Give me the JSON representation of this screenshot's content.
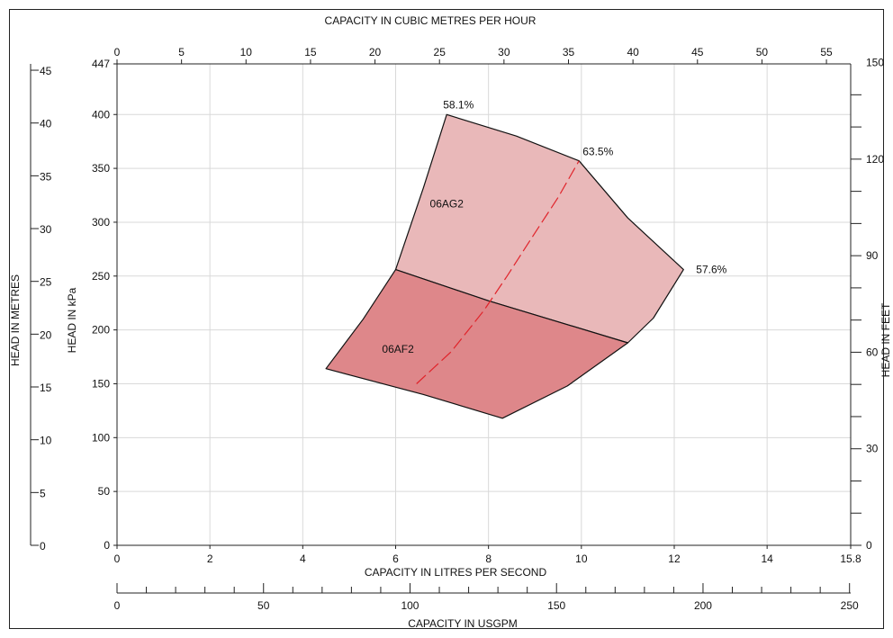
{
  "chart_data": {
    "type": "area",
    "titles": {
      "top": "CAPACITY IN CUBIC METRES PER HOUR",
      "bottom_lps": "CAPACITY IN LITRES PER SECOND",
      "bottom_gpm": "CAPACITY IN USGPM",
      "left_metres": "HEAD IN METRES",
      "left_kpa": "HEAD IN kPa",
      "right_feet": "HEAD IN FEET"
    },
    "axes": {
      "x_lps": {
        "range": [
          0,
          15.8
        ],
        "ticks": [
          "0",
          "2",
          "4",
          "6",
          "8",
          "10",
          "12",
          "14",
          "15.8"
        ],
        "tick_values": [
          0,
          2,
          4,
          6,
          8,
          10,
          12,
          14,
          15.8
        ]
      },
      "x_m3h": {
        "range": [
          0,
          56.88
        ],
        "ticks": [
          "0",
          "5",
          "10",
          "15",
          "20",
          "25",
          "30",
          "35",
          "40",
          "45",
          "50",
          "55"
        ],
        "tick_values": [
          0,
          5,
          10,
          15,
          20,
          25,
          30,
          35,
          40,
          45,
          50,
          55
        ]
      },
      "x_usgpm": {
        "range": [
          0,
          250.4
        ],
        "ticks": [
          "0",
          "50",
          "100",
          "150",
          "200",
          "250"
        ],
        "tick_values": [
          0,
          50,
          100,
          150,
          200,
          250
        ],
        "minor_step": 10
      },
      "y_kpa": {
        "range": [
          0,
          447
        ],
        "ticks": [
          "0",
          "50",
          "100",
          "150",
          "200",
          "250",
          "300",
          "350",
          "400",
          "447"
        ],
        "tick_values": [
          0,
          50,
          100,
          150,
          200,
          250,
          300,
          350,
          400,
          447
        ]
      },
      "y_metres": {
        "range": [
          0,
          45.6
        ],
        "ticks": [
          "0",
          "5",
          "10",
          "15",
          "20",
          "25",
          "30",
          "35",
          "40",
          "45"
        ],
        "tick_values": [
          0,
          5,
          10,
          15,
          20,
          25,
          30,
          35,
          40,
          45
        ]
      },
      "y_feet": {
        "range": [
          0,
          149.6
        ],
        "ticks": [
          "0",
          "30",
          "60",
          "90",
          "120",
          "150"
        ],
        "tick_values": [
          0,
          30,
          60,
          90,
          120,
          150
        ],
        "minor_step": 10
      }
    },
    "grid": true,
    "regions": [
      {
        "name": "06AG2",
        "color": "#e9b8b9",
        "label_at": {
          "lps": 7.1,
          "kpa": 317
        },
        "boundary": [
          {
            "lps": 6.0,
            "kpa": 256
          },
          {
            "lps": 6.6,
            "kpa": 332
          },
          {
            "lps": 7.1,
            "kpa": 400
          },
          {
            "lps": 8.6,
            "kpa": 380
          },
          {
            "lps": 9.95,
            "kpa": 357
          },
          {
            "lps": 11.0,
            "kpa": 304
          },
          {
            "lps": 12.2,
            "kpa": 256
          },
          {
            "lps": 11.55,
            "kpa": 211
          },
          {
            "lps": 11.0,
            "kpa": 188
          },
          {
            "lps": 8.0,
            "kpa": 227
          },
          {
            "lps": 6.0,
            "kpa": 256
          }
        ]
      },
      {
        "name": "06AF2",
        "color": "#de878a",
        "label_at": {
          "lps": 6.05,
          "kpa": 182
        },
        "boundary": [
          {
            "lps": 4.5,
            "kpa": 164
          },
          {
            "lps": 5.3,
            "kpa": 210
          },
          {
            "lps": 6.0,
            "kpa": 256
          },
          {
            "lps": 8.0,
            "kpa": 227
          },
          {
            "lps": 11.0,
            "kpa": 188
          },
          {
            "lps": 9.7,
            "kpa": 148
          },
          {
            "lps": 8.3,
            "kpa": 118
          },
          {
            "lps": 6.6,
            "kpa": 140
          },
          {
            "lps": 4.5,
            "kpa": 164
          }
        ]
      }
    ],
    "efficiency_labels": [
      {
        "text": "58.1%",
        "lps": 7.1,
        "kpa": 400
      },
      {
        "text": "63.5%",
        "lps": 9.95,
        "kpa": 357
      },
      {
        "text": "57.6%",
        "lps": 12.2,
        "kpa": 256
      }
    ],
    "best_efficiency_line": {
      "color": "#e0232a",
      "points": [
        {
          "lps": 6.45,
          "kpa": 150
        },
        {
          "lps": 7.2,
          "kpa": 180
        },
        {
          "lps": 7.9,
          "kpa": 218
        },
        {
          "lps": 8.4,
          "kpa": 250
        },
        {
          "lps": 9.0,
          "kpa": 290
        },
        {
          "lps": 9.5,
          "kpa": 323
        },
        {
          "lps": 9.95,
          "kpa": 357
        }
      ]
    },
    "colors": {
      "border": "#111111",
      "grid": "#d9d9d9",
      "text": "#111111"
    }
  }
}
